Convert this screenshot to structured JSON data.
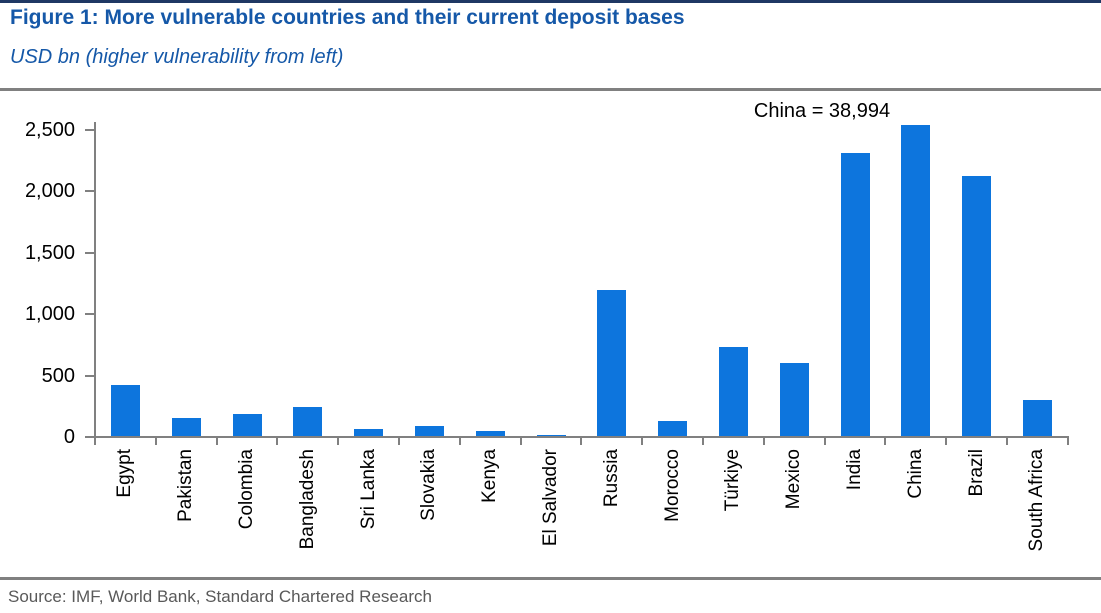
{
  "figure": {
    "title": "Figure 1: More vulnerable countries and their current deposit bases",
    "subtitle": "USD bn (higher vulnerability from left)",
    "source": "Source: IMF, World Bank, Standard Chartered Research"
  },
  "colors": {
    "title_blue": "#1558a8",
    "bar_blue": "#0d75dd",
    "axis_gray": "#808080",
    "rule_gray": "#808080",
    "top_border_navy": "#1f3864",
    "source_gray": "#595959"
  },
  "chart_data": {
    "type": "bar",
    "title": "Figure 1: More vulnerable countries and their current deposit bases",
    "subtitle": "USD bn (higher vulnerability from left)",
    "xlabel": "",
    "ylabel": "USD bn",
    "categories": [
      "Egypt",
      "Pakistan",
      "Colombia",
      "Bangladesh",
      "Sri Lanka",
      "Slovakia",
      "Kenya",
      "El Salvador",
      "Russia",
      "Morocco",
      "Türkiye",
      "Mexico",
      "India",
      "China",
      "Brazil",
      "South Africa"
    ],
    "values": [
      415,
      145,
      180,
      235,
      55,
      85,
      40,
      12,
      1190,
      125,
      720,
      590,
      2300,
      38994,
      2110,
      295
    ],
    "ylim": [
      0,
      2500
    ],
    "yticks": [
      0,
      500,
      1000,
      1500,
      2000,
      2500
    ],
    "ytick_labels": [
      "0",
      "500",
      "1,000",
      "1,500",
      "2,000",
      "2,500"
    ],
    "bar_cap": 2530,
    "annotation": {
      "text": "China = 38,994",
      "target": "China"
    },
    "note": "China bar truncated at top of y-axis; actual value 38,994 shown as annotation",
    "grid": false,
    "legend": false
  }
}
